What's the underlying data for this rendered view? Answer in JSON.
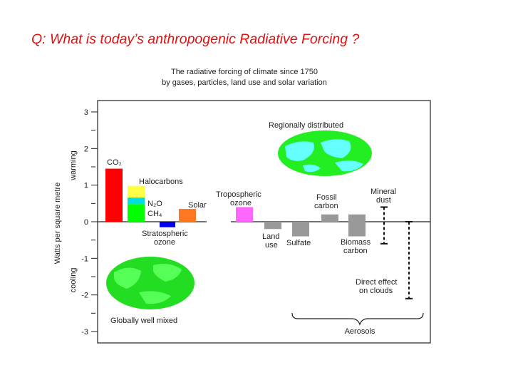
{
  "slide": {
    "title": "Q:  What is today’s anthropogenic Radiative Forcing ?"
  },
  "chart_data": {
    "type": "bar",
    "title": "The radiative forcing of climate since 1750",
    "subtitle": "by gases, particles, land use and solar variation",
    "ylabel": "Watts per square metre",
    "ylabel_positive": "warming",
    "ylabel_negative": "cooling",
    "ylim": [
      -3,
      3
    ],
    "yticks": [
      "3",
      "2",
      "1",
      "0",
      "-1",
      "-2",
      "-3"
    ],
    "grid": false,
    "bars": [
      {
        "key": "co2",
        "segments": [
          {
            "from": 0,
            "to": 1.45,
            "color": "#ff0000"
          }
        ]
      },
      {
        "key": "halocarbons",
        "segments": [
          {
            "from": 0,
            "to": 0.48,
            "color": "#00ff00"
          },
          {
            "from": 0.48,
            "to": 0.66,
            "color": "#00dddd"
          },
          {
            "from": 0.66,
            "to": 0.98,
            "color": "#ffff44"
          }
        ]
      },
      {
        "key": "stratospheric_ozone",
        "segments": [
          {
            "from": -0.15,
            "to": 0,
            "color": "#0000ee"
          }
        ]
      },
      {
        "key": "solar",
        "segments": [
          {
            "from": 0,
            "to": 0.35,
            "color": "#ff7722"
          }
        ]
      },
      {
        "key": "tropospheric_ozone",
        "segments": [
          {
            "from": 0,
            "to": 0.4,
            "color": "#ff66ff"
          }
        ]
      },
      {
        "key": "land_use",
        "segments": [
          {
            "from": -0.2,
            "to": 0,
            "color": "#999999"
          }
        ]
      },
      {
        "key": "sulfate",
        "segments": [
          {
            "from": -0.4,
            "to": 0,
            "color": "#999999"
          }
        ]
      },
      {
        "key": "fossil_carbon",
        "segments": [
          {
            "from": 0,
            "to": 0.2,
            "color": "#999999"
          }
        ]
      },
      {
        "key": "biomass_carbon",
        "segments": [
          {
            "from": -0.4,
            "to": 0.2,
            "color": "#999999"
          }
        ]
      }
    ],
    "uncertainty": [
      {
        "key": "mineral_dust",
        "range": [
          -0.6,
          0.4
        ]
      },
      {
        "key": "direct_effect_on_clouds",
        "range": [
          -2.1,
          0
        ]
      }
    ],
    "labels": {
      "co2": "CO₂",
      "halocarbons": "Halocarbons",
      "n2o": "N₂O",
      "ch4": "CH₄",
      "solar": "Solar",
      "stratospheric_ozone_1": "Stratospheric",
      "stratospheric_ozone_2": "ozone",
      "tropospheric_ozone_1": "Tropospheric",
      "tropospheric_ozone_2": "ozone",
      "land_use_1": "Land",
      "land_use_2": "use",
      "sulfate": "Sulfate",
      "fossil_carbon_1": "Fossil",
      "fossil_carbon_2": "carbon",
      "biomass_carbon_1": "Biomass",
      "biomass_carbon_2": "carbon",
      "mineral_dust_1": "Mineral",
      "mineral_dust_2": "dust",
      "direct_effect_1": "Direct effect",
      "direct_effect_2": "on clouds",
      "aerosols": "Aerosols",
      "regionally_distributed": "Regionally distributed",
      "globally_well_mixed": "Globally well mixed"
    },
    "map_colors": {
      "regional_land": "#22ee22",
      "regional_ocean": "#66ffff",
      "global_land": "#22dd22",
      "global_ocean": "#55ff55"
    }
  }
}
